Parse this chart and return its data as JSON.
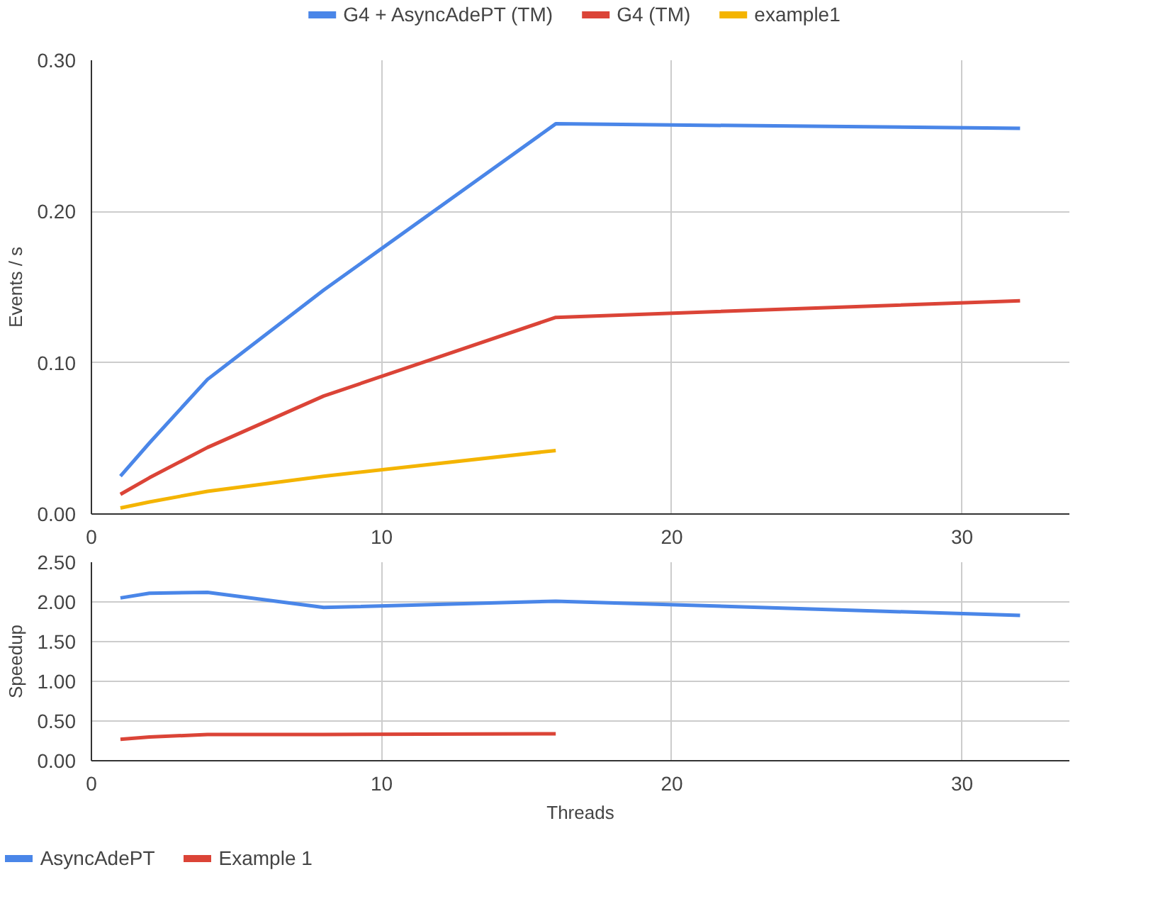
{
  "chart_data": [
    {
      "type": "line",
      "ylabel": "Events / s",
      "xlim": [
        0,
        33.7
      ],
      "xticks": [
        0,
        10,
        20,
        30
      ],
      "ylim": [
        0,
        0.3
      ],
      "yticks": [
        {
          "value": 0,
          "label": "0.00"
        },
        {
          "value": 0.1,
          "label": "0.10"
        },
        {
          "value": 0.2,
          "label": "0.20"
        },
        {
          "value": 0.3,
          "label": "0.30"
        }
      ],
      "grid": true,
      "legend": "top",
      "marker": "none",
      "line_style": "solid",
      "series": [
        {
          "name": "G4 + AsyncAdePT (TM)",
          "color": "#4a86e8",
          "x": [
            1,
            2,
            4,
            8,
            16,
            32
          ],
          "values": [
            0.025,
            0.047,
            0.089,
            0.148,
            0.258,
            0.255
          ]
        },
        {
          "name": "G4 (TM)",
          "color": "#db4437",
          "x": [
            1,
            2,
            4,
            8,
            16,
            32
          ],
          "values": [
            0.013,
            0.024,
            0.044,
            0.078,
            0.13,
            0.141
          ]
        },
        {
          "name": "example1",
          "color": "#f4b400",
          "x": [
            1,
            2,
            4,
            8,
            16
          ],
          "values": [
            0.004,
            0.008,
            0.015,
            0.025,
            0.042
          ]
        }
      ]
    },
    {
      "type": "line",
      "xlabel": "Threads",
      "ylabel": "Speedup",
      "xlim": [
        0,
        33.7
      ],
      "xticks": [
        0,
        10,
        20,
        30
      ],
      "ylim": [
        0,
        2.5
      ],
      "yticks": [
        {
          "value": 0,
          "label": "0.00"
        },
        {
          "value": 0.5,
          "label": "0.50"
        },
        {
          "value": 1,
          "label": "1.00"
        },
        {
          "value": 1.5,
          "label": "1.50"
        },
        {
          "value": 2,
          "label": "2.00"
        },
        {
          "value": 2.5,
          "label": "2.50"
        }
      ],
      "grid": true,
      "legend": "bottom left",
      "marker": "none",
      "line_style": "solid",
      "series": [
        {
          "name": "AsyncAdePT",
          "color": "#4a86e8",
          "x": [
            1,
            2,
            4,
            8,
            16,
            32
          ],
          "values": [
            2.05,
            2.11,
            2.12,
            1.93,
            2.01,
            1.83
          ]
        },
        {
          "name": "Example 1",
          "color": "#db4437",
          "x": [
            1,
            2,
            4,
            8,
            16
          ],
          "values": [
            0.27,
            0.3,
            0.33,
            0.33,
            0.34
          ]
        }
      ]
    }
  ]
}
